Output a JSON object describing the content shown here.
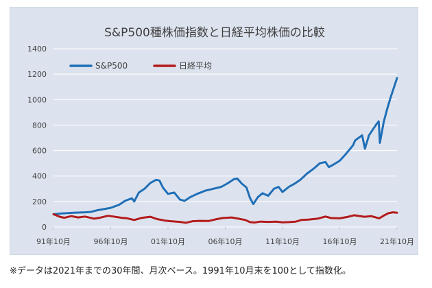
{
  "footnote": "※データは2021年までの30年間、月次ベース。1991年10月末を100として指数化。",
  "colors": {
    "sp500": "#1f6fb7",
    "nikkei": "#b31b1b",
    "background": "#dde3ee",
    "gridline": "#ffffff",
    "text": "#404040"
  },
  "chart_data": {
    "type": "line",
    "title": "S&P500種株価指数と日経平均株価の比較",
    "xlabel": "",
    "ylabel": "",
    "ylim": [
      0,
      1400
    ],
    "yticks": [
      "0",
      "200",
      "400",
      "600",
      "800",
      "1000",
      "1200",
      "1400"
    ],
    "xlim": [
      1991.75,
      2021.75
    ],
    "xticks": [
      {
        "x": 1991.75,
        "label": "91年10月"
      },
      {
        "x": 1996.75,
        "label": "96年10月"
      },
      {
        "x": 2001.75,
        "label": "01年10月"
      },
      {
        "x": 2006.75,
        "label": "06年10月"
      },
      {
        "x": 2011.75,
        "label": "11年10月"
      },
      {
        "x": 2016.75,
        "label": "16年10月"
      },
      {
        "x": 2021.75,
        "label": "21年10月"
      }
    ],
    "grid": "horizontal",
    "legend_position": "top-left",
    "series": [
      {
        "name": "S&P500",
        "color": "#1f6fb7",
        "points": [
          [
            1991.75,
            100
          ],
          [
            1992.5,
            106
          ],
          [
            1993.5,
            112
          ],
          [
            1994.5,
            115
          ],
          [
            1995.0,
            118
          ],
          [
            1995.5,
            130
          ],
          [
            1996.0,
            138
          ],
          [
            1996.75,
            150
          ],
          [
            1997.5,
            175
          ],
          [
            1998.0,
            205
          ],
          [
            1998.6,
            225
          ],
          [
            1998.8,
            200
          ],
          [
            1999.2,
            270
          ],
          [
            1999.7,
            300
          ],
          [
            2000.2,
            345
          ],
          [
            2000.7,
            370
          ],
          [
            2001.0,
            365
          ],
          [
            2001.3,
            310
          ],
          [
            2001.75,
            260
          ],
          [
            2002.3,
            270
          ],
          [
            2002.8,
            215
          ],
          [
            2003.2,
            205
          ],
          [
            2003.7,
            235
          ],
          [
            2004.3,
            260
          ],
          [
            2005.0,
            285
          ],
          [
            2005.7,
            300
          ],
          [
            2006.4,
            315
          ],
          [
            2007.0,
            345
          ],
          [
            2007.5,
            375
          ],
          [
            2007.8,
            380
          ],
          [
            2008.2,
            340
          ],
          [
            2008.6,
            310
          ],
          [
            2008.9,
            230
          ],
          [
            2009.2,
            180
          ],
          [
            2009.6,
            235
          ],
          [
            2010.0,
            265
          ],
          [
            2010.5,
            245
          ],
          [
            2011.0,
            300
          ],
          [
            2011.4,
            315
          ],
          [
            2011.75,
            275
          ],
          [
            2012.3,
            315
          ],
          [
            2012.8,
            340
          ],
          [
            2013.3,
            370
          ],
          [
            2013.9,
            420
          ],
          [
            2014.5,
            460
          ],
          [
            2015.0,
            500
          ],
          [
            2015.5,
            510
          ],
          [
            2015.8,
            470
          ],
          [
            2016.2,
            490
          ],
          [
            2016.75,
            520
          ],
          [
            2017.3,
            575
          ],
          [
            2017.9,
            640
          ],
          [
            2018.1,
            680
          ],
          [
            2018.7,
            720
          ],
          [
            2018.95,
            615
          ],
          [
            2019.3,
            720
          ],
          [
            2019.9,
            800
          ],
          [
            2020.15,
            830
          ],
          [
            2020.25,
            660
          ],
          [
            2020.6,
            830
          ],
          [
            2020.9,
            930
          ],
          [
            2021.2,
            1020
          ],
          [
            2021.5,
            1100
          ],
          [
            2021.75,
            1170
          ]
        ]
      },
      {
        "name": "日経平均",
        "color": "#b31b1b",
        "points": [
          [
            1991.75,
            100
          ],
          [
            1992.3,
            80
          ],
          [
            1992.7,
            72
          ],
          [
            1993.3,
            85
          ],
          [
            1993.9,
            75
          ],
          [
            1994.5,
            82
          ],
          [
            1995.3,
            65
          ],
          [
            1995.8,
            72
          ],
          [
            1996.5,
            88
          ],
          [
            1997.0,
            82
          ],
          [
            1997.7,
            72
          ],
          [
            1998.2,
            68
          ],
          [
            1998.8,
            55
          ],
          [
            1999.5,
            72
          ],
          [
            2000.2,
            80
          ],
          [
            2000.8,
            62
          ],
          [
            2001.5,
            50
          ],
          [
            2002.0,
            45
          ],
          [
            2002.8,
            40
          ],
          [
            2003.3,
            33
          ],
          [
            2003.9,
            45
          ],
          [
            2004.5,
            48
          ],
          [
            2005.3,
            47
          ],
          [
            2005.9,
            60
          ],
          [
            2006.5,
            70
          ],
          [
            2007.3,
            75
          ],
          [
            2007.9,
            65
          ],
          [
            2008.5,
            55
          ],
          [
            2008.9,
            38
          ],
          [
            2009.3,
            35
          ],
          [
            2009.8,
            42
          ],
          [
            2010.5,
            40
          ],
          [
            2011.2,
            42
          ],
          [
            2011.75,
            36
          ],
          [
            2012.3,
            38
          ],
          [
            2012.9,
            42
          ],
          [
            2013.4,
            55
          ],
          [
            2014.0,
            58
          ],
          [
            2014.8,
            65
          ],
          [
            2015.5,
            82
          ],
          [
            2016.0,
            70
          ],
          [
            2016.75,
            68
          ],
          [
            2017.5,
            80
          ],
          [
            2018.0,
            92
          ],
          [
            2018.9,
            80
          ],
          [
            2019.5,
            85
          ],
          [
            2020.2,
            68
          ],
          [
            2020.6,
            90
          ],
          [
            2021.0,
            108
          ],
          [
            2021.4,
            115
          ],
          [
            2021.75,
            112
          ]
        ]
      }
    ]
  }
}
